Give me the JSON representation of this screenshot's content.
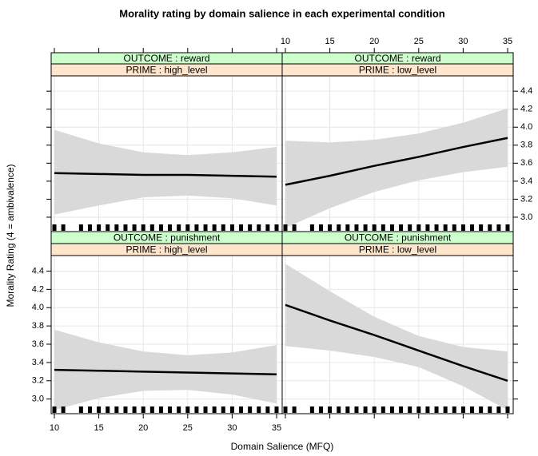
{
  "chart_data": {
    "type": "line",
    "title": "Morality rating by domain salience in each experimental condition",
    "xlabel": "Domain Salience (MFQ)",
    "ylabel": "Morality Rating (4 = ambivalence)",
    "xlim": [
      9.64,
      35.63
    ],
    "xticks": [
      10,
      15,
      20,
      25,
      30,
      35
    ],
    "ylim": [
      2.84,
      4.57
    ],
    "yticks": [
      {
        "value": 3,
        "label": "3.0"
      },
      3.2,
      3.4,
      3.6,
      3.8,
      {
        "value": 4,
        "label": "4.0"
      },
      4.2,
      4.4
    ],
    "grid": true,
    "line_color": "#000000",
    "band_color": "#d9d9d9",
    "strip_colors": [
      "#ccffcc",
      "#ffe5cc"
    ],
    "x": [
      10,
      15,
      20,
      25,
      30,
      35
    ],
    "rug": [
      10,
      11,
      13,
      14,
      15,
      16,
      17,
      18,
      19,
      20,
      21,
      22,
      23,
      24,
      25,
      26,
      27,
      28,
      29,
      30,
      31,
      32,
      33,
      34,
      35
    ],
    "panels": [
      {
        "strips": [
          "OUTCOME : reward",
          "PRIME : high_level"
        ],
        "fit": [
          3.49,
          3.48,
          3.47,
          3.47,
          3.46,
          3.45
        ],
        "upper": [
          3.97,
          3.82,
          3.72,
          3.69,
          3.72,
          3.78
        ],
        "lower": [
          3.03,
          3.13,
          3.22,
          3.24,
          3.21,
          3.13
        ]
      },
      {
        "strips": [
          "OUTCOME : reward",
          "PRIME : low_level"
        ],
        "fit": [
          3.36,
          3.46,
          3.57,
          3.67,
          3.78,
          3.88
        ],
        "upper": [
          3.85,
          3.83,
          3.86,
          3.93,
          4.05,
          4.21
        ],
        "lower": [
          2.88,
          3.1,
          3.28,
          3.41,
          3.5,
          3.56
        ]
      },
      {
        "strips": [
          "OUTCOME : punishment",
          "PRIME : high_level"
        ],
        "fit": [
          3.32,
          3.31,
          3.3,
          3.29,
          3.28,
          3.27
        ],
        "upper": [
          3.76,
          3.62,
          3.52,
          3.48,
          3.51,
          3.59
        ],
        "lower": [
          2.88,
          3.01,
          3.09,
          3.1,
          3.05,
          2.95
        ]
      },
      {
        "strips": [
          "OUTCOME : punishment",
          "PRIME : low_level"
        ],
        "fit": [
          4.03,
          3.86,
          3.7,
          3.53,
          3.36,
          3.2
        ],
        "upper": [
          4.48,
          4.18,
          3.9,
          3.69,
          3.57,
          3.52
        ],
        "lower": [
          3.58,
          3.53,
          3.46,
          3.35,
          3.14,
          2.88
        ]
      }
    ]
  }
}
